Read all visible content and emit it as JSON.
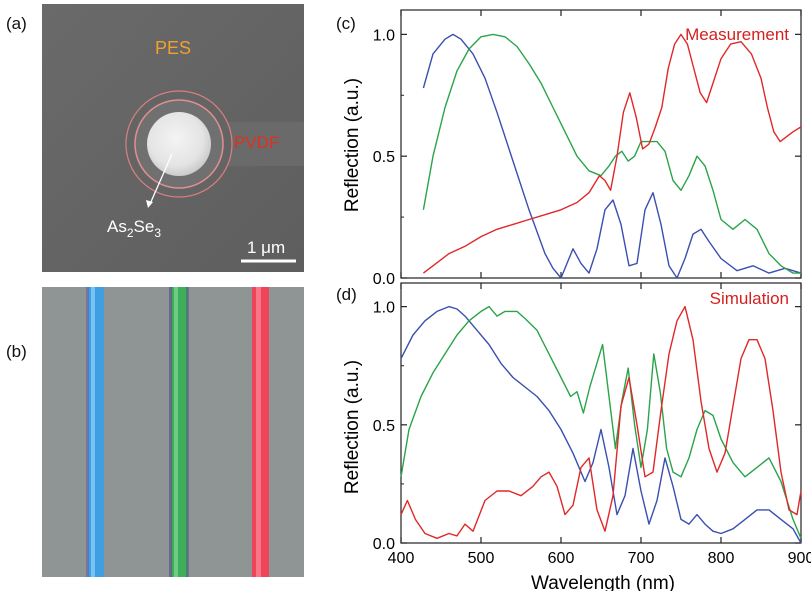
{
  "panel_labels": {
    "a": "(a)",
    "b": "(b)",
    "c": "(c)",
    "d": "(d)"
  },
  "sem_image": {
    "label_pes": "PES",
    "label_pvdf": "PVDF",
    "label_core_base": "As",
    "label_core_sub1": "2",
    "label_core_mid": "Se",
    "label_core_sub2": "3",
    "scalebar_label": "1 μm",
    "colors": {
      "pes": "#f2a030",
      "pvdf": "#e03020",
      "core_label": "#ffffff"
    }
  },
  "fiber_image": {
    "fiber_colors": [
      "#3f9fe0",
      "#3fae5a",
      "#f04458"
    ]
  },
  "chart_data": [
    {
      "type": "line",
      "panel": "c",
      "annotation": "Measurement",
      "ylabel": "Reflection (a.u.)",
      "xlabel": "",
      "xlim": [
        400,
        900
      ],
      "ylim": [
        0,
        1.1
      ],
      "yticks": [
        0.0,
        0.5,
        1.0
      ],
      "ytick_labels": [
        "0.0",
        "0.5",
        "1.0"
      ],
      "series": [
        {
          "color": "#3a4fb0",
          "x": [
            428,
            440,
            455,
            465,
            475,
            490,
            505,
            520,
            540,
            560,
            580,
            590,
            600,
            615,
            625,
            635,
            645,
            655,
            665,
            675,
            685,
            695,
            705,
            715,
            725,
            735,
            745,
            755,
            765,
            775,
            785,
            800,
            820,
            840,
            860,
            880,
            900
          ],
          "y": [
            0.78,
            0.92,
            0.98,
            1.0,
            0.98,
            0.92,
            0.82,
            0.68,
            0.48,
            0.28,
            0.1,
            0.04,
            0.0,
            0.12,
            0.06,
            0.02,
            0.12,
            0.28,
            0.32,
            0.22,
            0.05,
            0.06,
            0.28,
            0.35,
            0.22,
            0.05,
            0.0,
            0.08,
            0.18,
            0.2,
            0.15,
            0.08,
            0.03,
            0.05,
            0.02,
            0.04,
            0.02
          ]
        },
        {
          "color": "#2aa44a",
          "x": [
            428,
            440,
            455,
            470,
            485,
            500,
            515,
            530,
            545,
            560,
            575,
            590,
            605,
            620,
            635,
            650,
            660,
            668,
            676,
            684,
            692,
            700,
            710,
            720,
            730,
            740,
            750,
            760,
            770,
            780,
            790,
            800,
            815,
            830,
            845,
            860,
            875,
            890,
            900
          ],
          "y": [
            0.28,
            0.5,
            0.7,
            0.85,
            0.94,
            0.99,
            1.0,
            0.99,
            0.95,
            0.88,
            0.8,
            0.7,
            0.6,
            0.5,
            0.44,
            0.42,
            0.46,
            0.5,
            0.52,
            0.48,
            0.5,
            0.56,
            0.56,
            0.56,
            0.52,
            0.4,
            0.36,
            0.42,
            0.5,
            0.46,
            0.36,
            0.24,
            0.2,
            0.24,
            0.2,
            0.1,
            0.05,
            0.02,
            0.02
          ]
        },
        {
          "color": "#e02828",
          "x": [
            428,
            440,
            460,
            480,
            500,
            520,
            540,
            560,
            580,
            600,
            620,
            635,
            648,
            655,
            662,
            670,
            678,
            686,
            694,
            702,
            710,
            718,
            726,
            734,
            742,
            750,
            758,
            766,
            774,
            782,
            790,
            800,
            812,
            825,
            838,
            850,
            858,
            866,
            874,
            882,
            890,
            900
          ],
          "y": [
            0.02,
            0.05,
            0.1,
            0.13,
            0.17,
            0.2,
            0.22,
            0.24,
            0.26,
            0.28,
            0.31,
            0.35,
            0.42,
            0.4,
            0.36,
            0.5,
            0.68,
            0.76,
            0.66,
            0.53,
            0.55,
            0.62,
            0.7,
            0.86,
            0.96,
            1.0,
            0.96,
            0.86,
            0.76,
            0.72,
            0.8,
            0.9,
            0.96,
            0.97,
            0.92,
            0.82,
            0.7,
            0.6,
            0.56,
            0.58,
            0.6,
            0.62
          ]
        }
      ]
    },
    {
      "type": "line",
      "panel": "d",
      "annotation": "Simulation",
      "ylabel": "Reflection (a.u.)",
      "xlabel": "Wavelength (nm)",
      "xlim": [
        400,
        900
      ],
      "ylim": [
        0,
        1.1
      ],
      "yticks": [
        0.0,
        0.5,
        1.0
      ],
      "ytick_labels": [
        "0.0",
        "0.5",
        "1.0"
      ],
      "xticks": [
        400,
        500,
        600,
        700,
        800,
        900
      ],
      "xtick_labels": [
        "400",
        "500",
        "600",
        "700",
        "800",
        "900"
      ],
      "series": [
        {
          "color": "#3a4fb0",
          "x": [
            400,
            415,
            430,
            445,
            460,
            470,
            480,
            495,
            510,
            525,
            540,
            555,
            570,
            585,
            600,
            615,
            630,
            640,
            650,
            660,
            670,
            680,
            690,
            700,
            710,
            720,
            730,
            740,
            750,
            760,
            770,
            780,
            790,
            800,
            815,
            830,
            845,
            860,
            875,
            890,
            900
          ],
          "y": [
            0.78,
            0.88,
            0.94,
            0.98,
            1.0,
            0.99,
            0.96,
            0.9,
            0.84,
            0.76,
            0.7,
            0.66,
            0.62,
            0.56,
            0.48,
            0.38,
            0.26,
            0.34,
            0.48,
            0.32,
            0.12,
            0.2,
            0.4,
            0.22,
            0.08,
            0.18,
            0.36,
            0.24,
            0.1,
            0.08,
            0.12,
            0.08,
            0.05,
            0.04,
            0.06,
            0.1,
            0.14,
            0.14,
            0.1,
            0.06,
            0.0
          ]
        },
        {
          "color": "#2aa44a",
          "x": [
            400,
            410,
            425,
            440,
            455,
            470,
            485,
            500,
            510,
            520,
            530,
            545,
            555,
            570,
            585,
            600,
            612,
            620,
            628,
            636,
            644,
            652,
            660,
            668,
            676,
            684,
            692,
            700,
            708,
            716,
            724,
            732,
            740,
            750,
            760,
            770,
            780,
            790,
            800,
            815,
            830,
            845,
            860,
            875,
            890,
            900
          ],
          "y": [
            0.28,
            0.48,
            0.62,
            0.72,
            0.8,
            0.88,
            0.94,
            0.98,
            1.0,
            0.96,
            0.98,
            0.98,
            0.95,
            0.9,
            0.8,
            0.7,
            0.62,
            0.64,
            0.55,
            0.66,
            0.75,
            0.84,
            0.62,
            0.4,
            0.6,
            0.74,
            0.5,
            0.32,
            0.48,
            0.8,
            0.64,
            0.4,
            0.3,
            0.28,
            0.36,
            0.48,
            0.56,
            0.54,
            0.44,
            0.34,
            0.28,
            0.32,
            0.36,
            0.26,
            0.1,
            0.02
          ]
        },
        {
          "color": "#e02828",
          "x": [
            400,
            408,
            418,
            430,
            445,
            460,
            470,
            480,
            490,
            505,
            520,
            535,
            550,
            565,
            575,
            585,
            595,
            605,
            615,
            625,
            635,
            645,
            655,
            665,
            675,
            685,
            695,
            705,
            715,
            725,
            735,
            745,
            755,
            765,
            775,
            785,
            795,
            805,
            815,
            825,
            835,
            845,
            855,
            865,
            875,
            885,
            895,
            900
          ],
          "y": [
            0.12,
            0.18,
            0.1,
            0.04,
            0.02,
            0.04,
            0.03,
            0.08,
            0.05,
            0.18,
            0.22,
            0.22,
            0.2,
            0.24,
            0.28,
            0.3,
            0.24,
            0.12,
            0.16,
            0.32,
            0.36,
            0.14,
            0.05,
            0.2,
            0.58,
            0.7,
            0.5,
            0.28,
            0.3,
            0.56,
            0.8,
            0.94,
            1.0,
            0.86,
            0.6,
            0.4,
            0.3,
            0.38,
            0.58,
            0.78,
            0.86,
            0.86,
            0.78,
            0.56,
            0.3,
            0.14,
            0.12,
            0.22
          ]
        }
      ]
    }
  ]
}
